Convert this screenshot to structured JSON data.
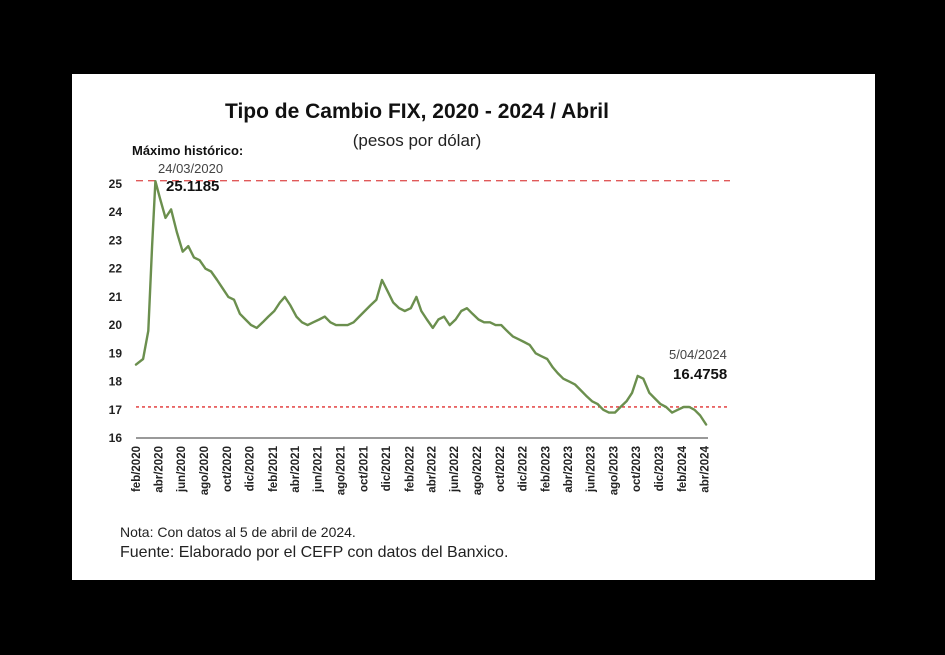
{
  "chart_data": {
    "type": "line",
    "title": "Tipo de Cambio FIX, 2020 - 2024 / Abril",
    "subtitle": "(pesos por dólar)",
    "ylim": [
      16,
      25
    ],
    "yticks": [
      16,
      17,
      18,
      19,
      20,
      21,
      22,
      23,
      24,
      25
    ],
    "xticks": [
      "feb/2020",
      "abr/2020",
      "jun/2020",
      "ago/2020",
      "oct/2020",
      "dic/2020",
      "feb/2021",
      "abr/2021",
      "jun/2021",
      "ago/2021",
      "oct/2021",
      "dic/2021",
      "feb/2022",
      "abr/2022",
      "jun/2022",
      "ago/2022",
      "oct/2022",
      "dic/2022",
      "feb/2023",
      "abr/2023",
      "jun/2023",
      "ago/2023",
      "oct/2023",
      "dic/2023",
      "feb/2024",
      "abr/2024"
    ],
    "series": [
      {
        "color": "#6b8f4e",
        "x": [
          "2020-02-01",
          "2020-02-20",
          "2020-03-05",
          "2020-03-15",
          "2020-03-24",
          "2020-04-05",
          "2020-04-20",
          "2020-05-05",
          "2020-05-20",
          "2020-06-05",
          "2020-06-20",
          "2020-07-05",
          "2020-07-20",
          "2020-08-05",
          "2020-08-20",
          "2020-09-05",
          "2020-09-20",
          "2020-10-05",
          "2020-10-20",
          "2020-11-05",
          "2020-11-20",
          "2020-12-05",
          "2020-12-20",
          "2021-01-05",
          "2021-01-20",
          "2021-02-05",
          "2021-02-20",
          "2021-03-05",
          "2021-03-20",
          "2021-04-05",
          "2021-04-20",
          "2021-05-05",
          "2021-05-20",
          "2021-06-05",
          "2021-06-20",
          "2021-07-05",
          "2021-07-20",
          "2021-08-05",
          "2021-08-20",
          "2021-09-05",
          "2021-09-20",
          "2021-10-05",
          "2021-10-20",
          "2021-11-05",
          "2021-11-20",
          "2021-12-05",
          "2021-12-20",
          "2022-01-05",
          "2022-01-20",
          "2022-02-05",
          "2022-02-20",
          "2022-03-05",
          "2022-03-20",
          "2022-04-05",
          "2022-04-20",
          "2022-05-05",
          "2022-05-20",
          "2022-06-05",
          "2022-06-20",
          "2022-07-05",
          "2022-07-20",
          "2022-08-05",
          "2022-08-20",
          "2022-09-05",
          "2022-09-20",
          "2022-10-05",
          "2022-10-20",
          "2022-11-05",
          "2022-11-20",
          "2022-12-05",
          "2022-12-20",
          "2023-01-05",
          "2023-01-20",
          "2023-02-05",
          "2023-02-20",
          "2023-03-05",
          "2023-03-20",
          "2023-04-05",
          "2023-04-20",
          "2023-05-05",
          "2023-05-20",
          "2023-06-05",
          "2023-06-20",
          "2023-07-05",
          "2023-07-20",
          "2023-08-05",
          "2023-08-20",
          "2023-09-05",
          "2023-09-20",
          "2023-10-05",
          "2023-10-20",
          "2023-11-05",
          "2023-11-20",
          "2023-12-05",
          "2023-12-20",
          "2024-01-05",
          "2024-01-20",
          "2024-02-05",
          "2024-02-20",
          "2024-03-05",
          "2024-03-20",
          "2024-04-05"
        ],
        "y": [
          18.6,
          18.8,
          19.8,
          22.8,
          25.1,
          24.5,
          23.8,
          24.1,
          23.3,
          22.6,
          22.8,
          22.4,
          22.3,
          22.0,
          21.9,
          21.6,
          21.3,
          21.0,
          20.9,
          20.4,
          20.2,
          20.0,
          19.9,
          20.1,
          20.3,
          20.5,
          20.8,
          21.0,
          20.7,
          20.3,
          20.1,
          20.0,
          20.1,
          20.2,
          20.3,
          20.1,
          20.0,
          20.0,
          20.0,
          20.1,
          20.3,
          20.5,
          20.7,
          20.9,
          21.6,
          21.2,
          20.8,
          20.6,
          20.5,
          20.6,
          21.0,
          20.5,
          20.2,
          19.9,
          20.2,
          20.3,
          20.0,
          20.2,
          20.5,
          20.6,
          20.4,
          20.2,
          20.1,
          20.1,
          20.0,
          20.0,
          19.8,
          19.6,
          19.5,
          19.4,
          19.3,
          19.0,
          18.9,
          18.8,
          18.5,
          18.3,
          18.1,
          18.0,
          17.9,
          17.7,
          17.5,
          17.3,
          17.2,
          17.0,
          16.9,
          16.9,
          17.1,
          17.3,
          17.6,
          18.2,
          18.1,
          17.6,
          17.4,
          17.2,
          17.1,
          16.9,
          17.0,
          17.1,
          17.1,
          17.0,
          16.8,
          16.48
        ]
      }
    ],
    "reference_lines": [
      {
        "y": 25.1185,
        "color": "#e05a5a",
        "style": "dashed"
      },
      {
        "y": 17.1,
        "color": "#e03030",
        "style": "dotted"
      }
    ],
    "annotations": {
      "max_label": "Máximo histórico:",
      "max_date": "24/03/2020",
      "max_value": "25.1185",
      "last_date": "5/04/2024",
      "last_value": "16.4758"
    },
    "grid": false,
    "legend": "none"
  },
  "notes": {
    "note": "Nota: Con datos al 5 de abril de 2024.",
    "source": "Fuente: Elaborado por el CEFP con datos del Banxico."
  }
}
